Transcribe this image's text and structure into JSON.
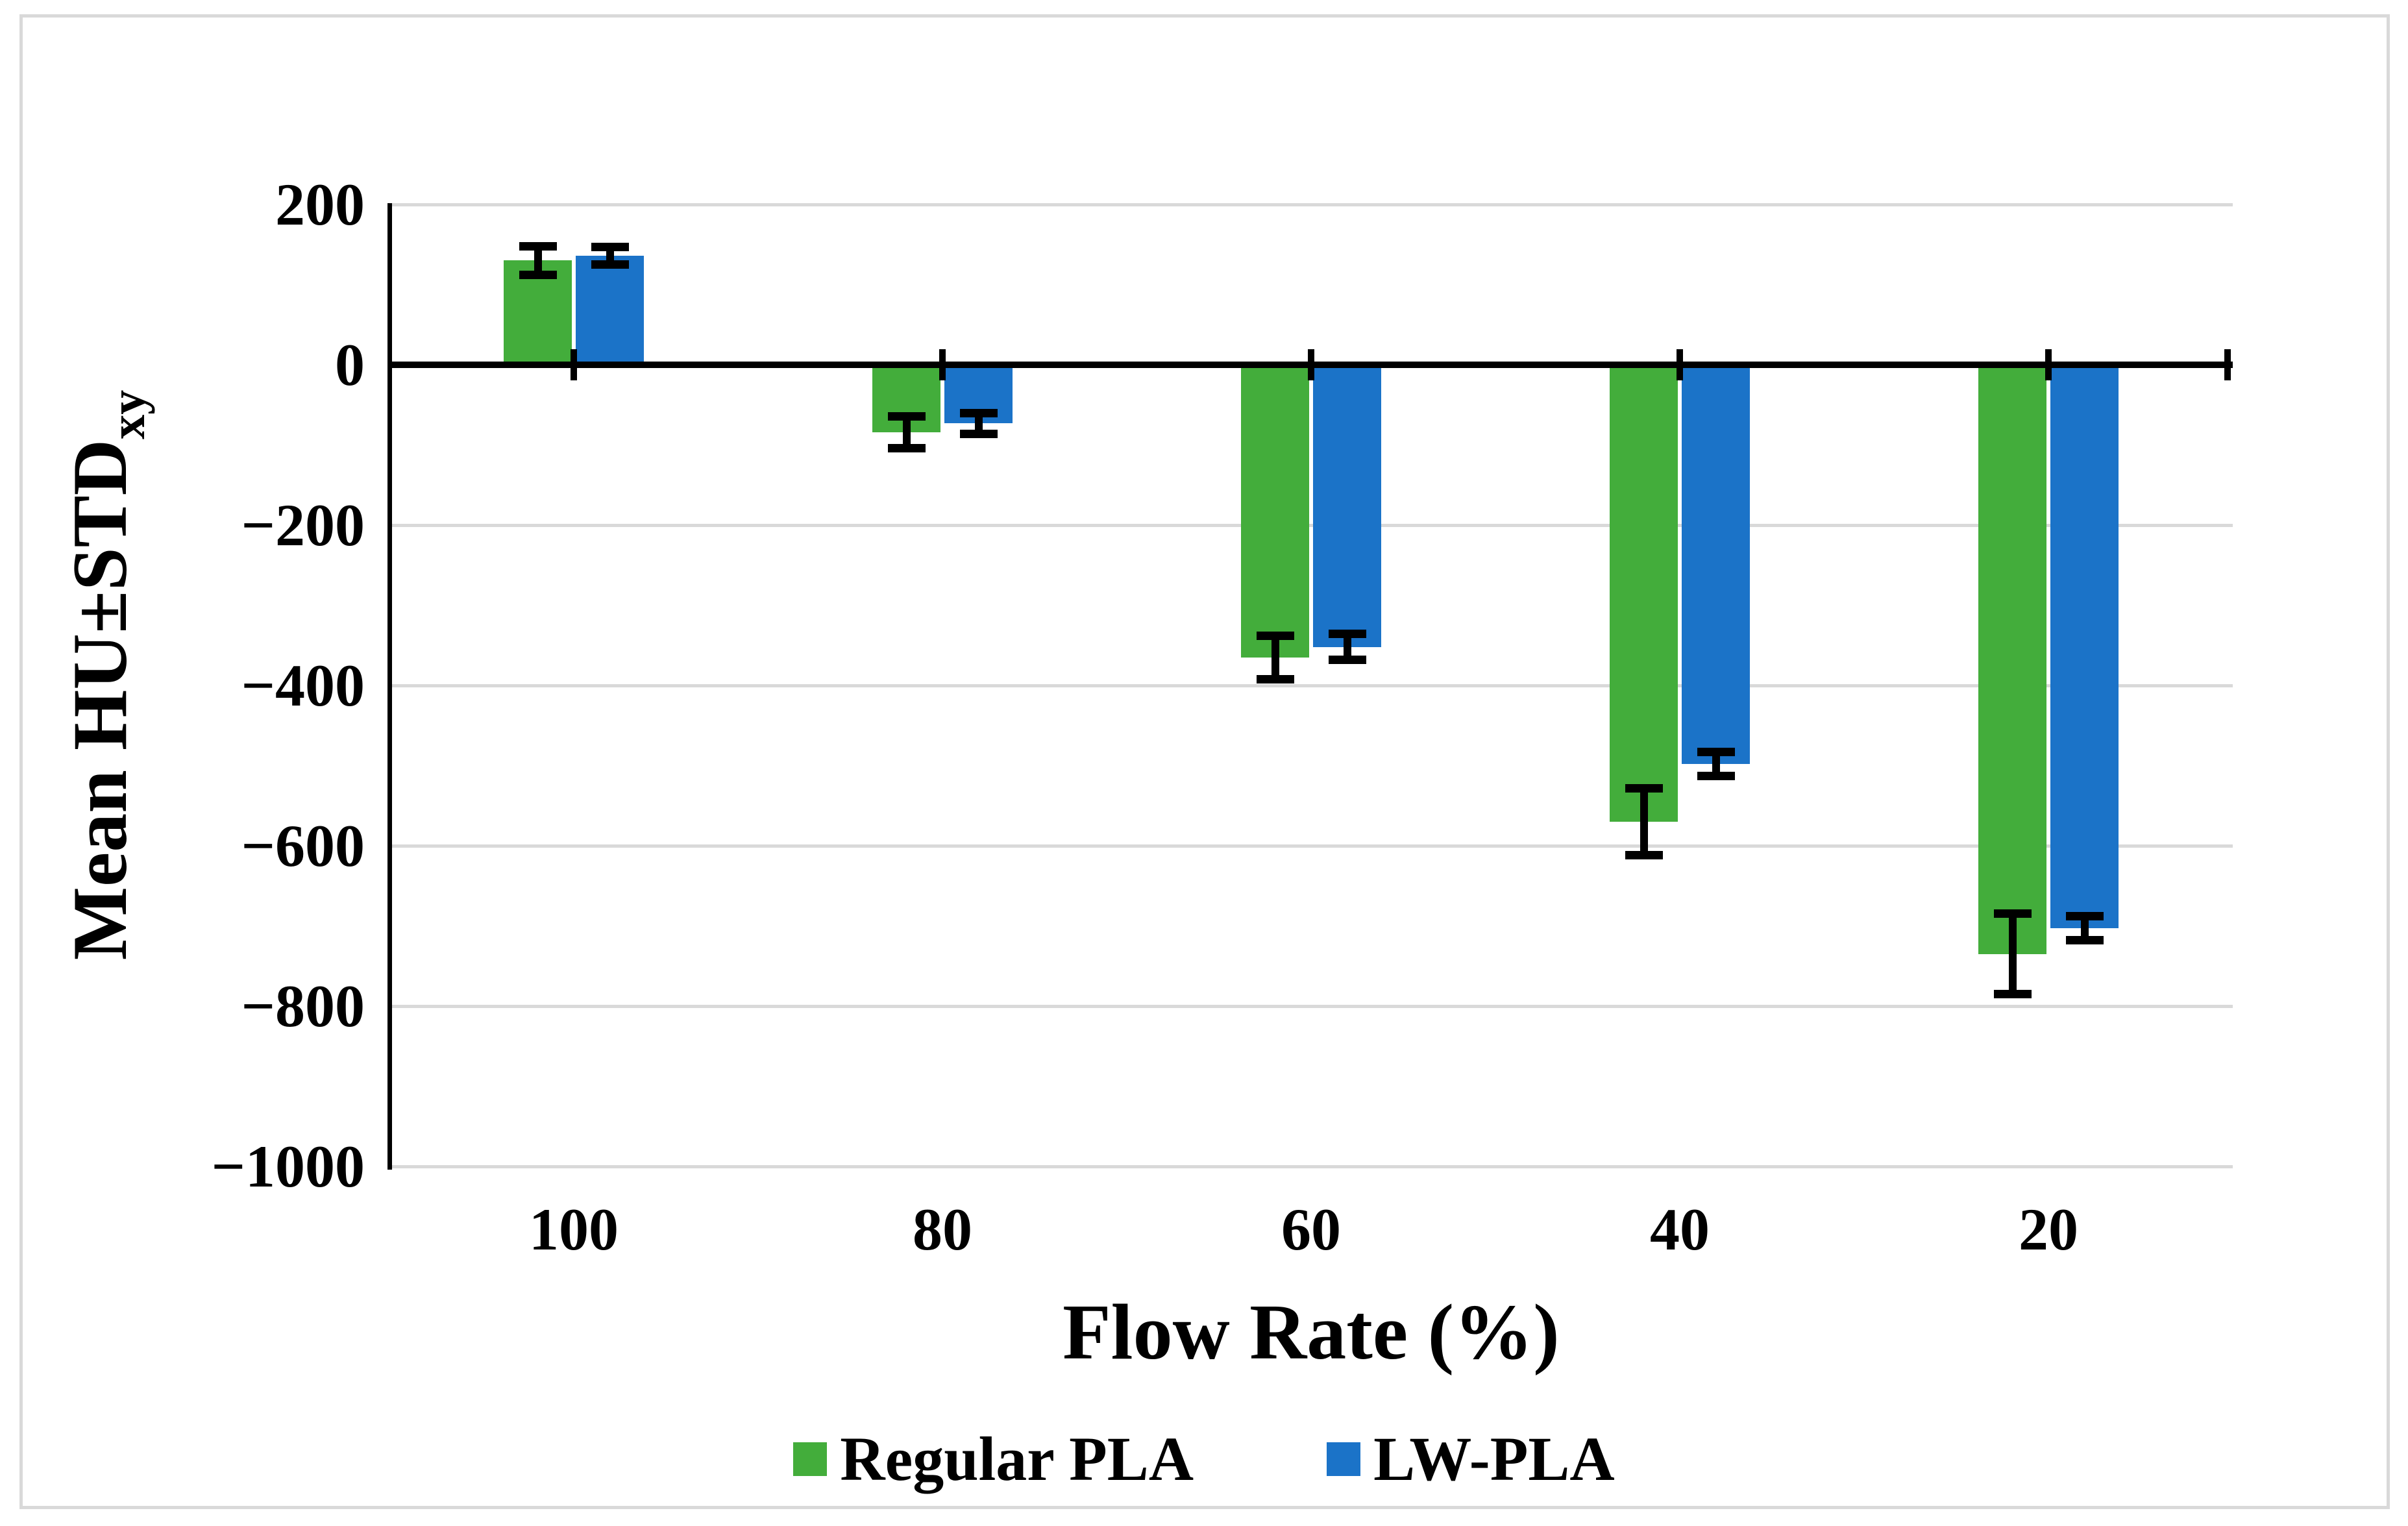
{
  "figure": {
    "background": "#FFFFFF",
    "border_color": "#D9D9D9"
  },
  "chart_data": {
    "type": "bar",
    "title": "",
    "xlabel": "Flow Rate (%)",
    "ylabel": "Mean HU±STD",
    "ylabel_subscript": "xy",
    "categories": [
      "100",
      "80",
      "60",
      "40",
      "20"
    ],
    "series": [
      {
        "name": "Regular PLA",
        "color": "#43AD3B",
        "values": [
          130,
          -84,
          -365,
          -570,
          -735
        ],
        "errors": [
          18,
          20,
          27,
          42,
          50
        ]
      },
      {
        "name": "LW-PLA",
        "color": "#1B73C8",
        "values": [
          136,
          -73,
          -352,
          -498,
          -703
        ],
        "errors": [
          11,
          13,
          16,
          15,
          15
        ]
      }
    ],
    "ylim": [
      -1000,
      200
    ],
    "ytick_step": 200,
    "yticks": [
      {
        "label": "200",
        "value": 200
      },
      {
        "label": "0",
        "value": 0
      },
      {
        "label": "−200",
        "value": -200
      },
      {
        "label": "−400",
        "value": -400
      },
      {
        "label": "−600",
        "value": -600
      },
      {
        "label": "−800",
        "value": -800
      },
      {
        "label": "−1000",
        "value": -1000
      }
    ],
    "grid": true,
    "gridline_color": "#D9D9D9",
    "axis_color": "#000000",
    "error_bar_color": "#000000",
    "legend_position": "bottom"
  }
}
